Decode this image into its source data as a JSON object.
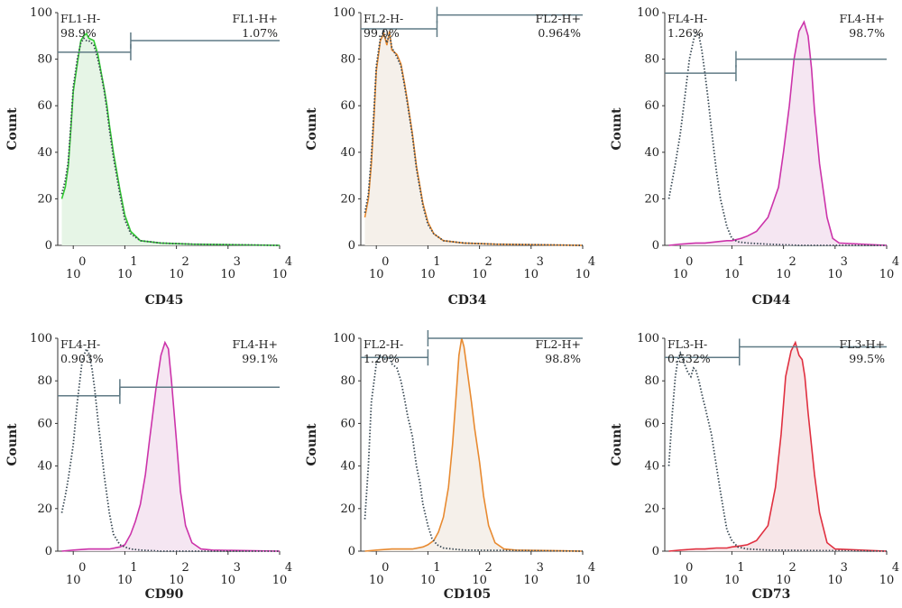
{
  "figure": {
    "y_axis_label": "Count",
    "x_tick_base": "10",
    "x_exponents": [
      "0",
      "1",
      "2",
      "3",
      "4"
    ],
    "y_ticks": [
      "0",
      "20",
      "40",
      "60",
      "80",
      "100"
    ],
    "isotype_color": "#3a4a55",
    "gate_color": "#5f7a85"
  },
  "chart_data": [
    {
      "type": "area",
      "marker": "CD45",
      "xlabel": "CD45",
      "ylabel": "Count",
      "x_scale": "log10",
      "xlim": [
        0.5,
        10000
      ],
      "ylim": [
        0,
        100
      ],
      "color": "#33cc33",
      "fill": "#e6f5e6",
      "gate_left": {
        "label": "FL1-H-",
        "percent": "98.9%",
        "x_range": [
          0.5,
          13
        ],
        "y": 83
      },
      "gate_right": {
        "label": "FL1-H+",
        "percent": "1.07%",
        "x_range": [
          13,
          10000
        ],
        "y": 88
      },
      "series": [
        {
          "name": "",
          "style": "solid",
          "x": [
            0.6,
            0.7,
            0.8,
            0.9,
            1.0,
            1.2,
            1.4,
            1.6,
            1.8,
            2.0,
            2.5,
            3.0,
            3.5,
            4.0,
            4.5,
            5.0,
            6.0,
            8.0,
            10,
            13,
            20,
            50,
            200,
            10000
          ],
          "y": [
            20,
            25,
            34,
            50,
            66,
            78,
            88,
            90,
            91,
            89,
            88,
            82,
            74,
            67,
            60,
            52,
            40,
            24,
            13,
            6,
            2,
            1,
            0.5,
            0
          ]
        },
        {
          "name": "",
          "style": "dotted",
          "x": [
            0.6,
            0.7,
            0.8,
            0.9,
            1.0,
            1.2,
            1.4,
            1.6,
            1.8,
            2.0,
            2.5,
            3.0,
            3.5,
            4.0,
            4.5,
            5.0,
            6.0,
            8.0,
            10,
            13,
            20,
            50,
            200,
            10000
          ],
          "y": [
            22,
            28,
            36,
            52,
            68,
            80,
            87,
            89,
            88,
            88,
            86,
            80,
            73,
            66,
            58,
            50,
            38,
            22,
            11,
            5,
            2,
            1,
            0.5,
            0
          ]
        }
      ]
    },
    {
      "type": "area",
      "marker": "CD34",
      "xlabel": "CD34",
      "ylabel": "Count",
      "x_scale": "log10",
      "xlim": [
        0.5,
        10000
      ],
      "ylim": [
        0,
        100
      ],
      "color": "#e88a30",
      "fill": "#f5f0ea",
      "gate_left": {
        "label": "FL2-H-",
        "percent": "99.0%",
        "x_range": [
          0.5,
          15
        ],
        "y": 93
      },
      "gate_right": {
        "label": "FL2-H+",
        "percent": "0.964%",
        "x_range": [
          15,
          10000
        ],
        "y": 99
      },
      "series": [
        {
          "name": "",
          "style": "solid",
          "x": [
            0.6,
            0.7,
            0.8,
            0.9,
            1.0,
            1.2,
            1.4,
            1.6,
            1.8,
            2.0,
            2.5,
            3.0,
            3.5,
            4.0,
            5.0,
            6.0,
            8.0,
            10,
            13,
            20,
            50,
            200,
            10000
          ],
          "y": [
            12,
            20,
            35,
            55,
            75,
            88,
            91,
            86,
            92,
            84,
            82,
            78,
            70,
            62,
            48,
            34,
            18,
            10,
            5,
            2,
            1,
            0.5,
            0
          ]
        },
        {
          "name": "",
          "style": "dotted",
          "x": [
            0.6,
            0.7,
            0.8,
            0.9,
            1.0,
            1.2,
            1.4,
            1.6,
            1.8,
            2.0,
            2.5,
            3.0,
            3.5,
            4.0,
            5.0,
            6.0,
            8.0,
            10,
            13,
            20,
            50,
            200,
            10000
          ],
          "y": [
            14,
            22,
            38,
            58,
            77,
            89,
            92,
            87,
            91,
            85,
            81,
            77,
            69,
            61,
            47,
            33,
            17,
            9,
            5,
            2,
            1,
            0.5,
            0
          ]
        }
      ]
    },
    {
      "type": "area",
      "marker": "CD44",
      "xlabel": "CD44",
      "ylabel": "Count",
      "x_scale": "log10",
      "xlim": [
        0.5,
        10000
      ],
      "ylim": [
        0,
        100
      ],
      "color": "#cc33aa",
      "fill": "#f5e6f2",
      "gate_left": {
        "label": "FL4-H-",
        "percent": "1.26%",
        "x_range": [
          0.5,
          12
        ],
        "y": 74
      },
      "gate_right": {
        "label": "FL4-H+",
        "percent": "98.7%",
        "x_range": [
          12,
          10000
        ],
        "y": 80
      },
      "series": [
        {
          "name": "",
          "style": "solid",
          "x": [
            0.6,
            1,
            2,
            3,
            5,
            8,
            10,
            15,
            20,
            30,
            50,
            80,
            100,
            130,
            160,
            200,
            250,
            300,
            350,
            400,
            500,
            700,
            900,
            1200,
            10000
          ],
          "y": [
            0,
            0.5,
            1,
            1,
            1.5,
            2,
            2,
            3,
            4,
            6,
            12,
            25,
            40,
            60,
            80,
            92,
            96,
            90,
            76,
            58,
            35,
            12,
            3,
            1,
            0
          ]
        },
        {
          "name": "",
          "style": "dotted",
          "x": [
            0.6,
            0.7,
            0.8,
            1.0,
            1.2,
            1.5,
            1.8,
            2.0,
            2.3,
            2.6,
            3.0,
            3.5,
            4.0,
            5.0,
            6.0,
            8.0,
            10,
            13,
            20,
            50,
            200,
            10000
          ],
          "y": [
            20,
            28,
            35,
            48,
            62,
            80,
            88,
            92,
            90,
            84,
            74,
            62,
            50,
            32,
            20,
            8,
            3,
            1.5,
            1,
            0.5,
            0,
            0
          ]
        }
      ]
    },
    {
      "type": "area",
      "marker": "CD90",
      "xlabel": "CD90",
      "ylabel": "Count",
      "x_scale": "log10",
      "xlim": [
        0.5,
        10000
      ],
      "ylim": [
        0,
        100
      ],
      "color": "#cc33aa",
      "fill": "#f5e6f2",
      "gate_left": {
        "label": "FL4-H-",
        "percent": "0.903%",
        "x_range": [
          0.5,
          8
        ],
        "y": 73
      },
      "gate_right": {
        "label": "FL4-H+",
        "percent": "99.1%",
        "x_range": [
          8,
          10000
        ],
        "y": 77
      },
      "series": [
        {
          "name": "",
          "style": "solid",
          "x": [
            0.6,
            1,
            2,
            3,
            5,
            8,
            10,
            13,
            16,
            20,
            25,
            30,
            40,
            50,
            60,
            70,
            80,
            100,
            120,
            150,
            200,
            300,
            500,
            10000
          ],
          "y": [
            0,
            0.5,
            1,
            1,
            1,
            2,
            3,
            8,
            14,
            22,
            36,
            52,
            76,
            92,
            98,
            95,
            80,
            52,
            28,
            12,
            4,
            1,
            0.5,
            0
          ]
        },
        {
          "name": "",
          "style": "dotted",
          "x": [
            0.6,
            0.7,
            0.8,
            1.0,
            1.2,
            1.5,
            1.8,
            2.0,
            2.3,
            2.6,
            3.0,
            3.5,
            4.0,
            5.0,
            6.0,
            8.0,
            10,
            13,
            20,
            50,
            10000
          ],
          "y": [
            18,
            26,
            34,
            50,
            70,
            90,
            95,
            93,
            86,
            76,
            62,
            48,
            35,
            18,
            8,
            3,
            2,
            1,
            0.5,
            0,
            0
          ]
        }
      ]
    },
    {
      "type": "area",
      "marker": "CD105",
      "xlabel": "CD105",
      "ylabel": "Count",
      "x_scale": "log10",
      "xlim": [
        0.5,
        10000
      ],
      "ylim": [
        0,
        100
      ],
      "color": "#e88a30",
      "fill": "#f5f0ea",
      "gate_left": {
        "label": "FL2-H-",
        "percent": "1.20%",
        "x_range": [
          0.5,
          10
        ],
        "y": 91
      },
      "gate_right": {
        "label": "FL2-H+",
        "percent": "98.8%",
        "x_range": [
          10,
          10000
        ],
        "y": 100
      },
      "series": [
        {
          "name": "",
          "style": "solid",
          "x": [
            0.6,
            1,
            2,
            3,
            5,
            8,
            10,
            13,
            16,
            20,
            25,
            30,
            35,
            40,
            45,
            50,
            60,
            70,
            80,
            100,
            120,
            150,
            200,
            300,
            500,
            10000
          ],
          "y": [
            0,
            0.5,
            1,
            1,
            1,
            2,
            3,
            5,
            9,
            16,
            30,
            50,
            72,
            92,
            100,
            96,
            82,
            70,
            58,
            42,
            26,
            12,
            4,
            1,
            0.5,
            0
          ]
        },
        {
          "name": "",
          "style": "dotted",
          "x": [
            0.6,
            0.7,
            0.8,
            1.0,
            1.2,
            1.5,
            1.8,
            2.0,
            2.5,
            3.0,
            3.5,
            4.0,
            5.0,
            6.0,
            7.0,
            8.0,
            10,
            12,
            15,
            20,
            30,
            50,
            10000
          ],
          "y": [
            15,
            40,
            70,
            88,
            92,
            90,
            91,
            88,
            86,
            80,
            72,
            64,
            54,
            40,
            32,
            22,
            12,
            6,
            3,
            1.5,
            1,
            0.5,
            0
          ]
        }
      ]
    },
    {
      "type": "area",
      "marker": "CD73",
      "xlabel": "CD73",
      "ylabel": "Count",
      "x_scale": "log10",
      "xlim": [
        0.5,
        10000
      ],
      "ylim": [
        0,
        100
      ],
      "color": "#e03040",
      "fill": "#f7e6e8",
      "gate_left": {
        "label": "FL3-H-",
        "percent": "0.532%",
        "x_range": [
          0.5,
          14
        ],
        "y": 91
      },
      "gate_right": {
        "label": "FL3-H+",
        "percent": "99.5%",
        "x_range": [
          14,
          10000
        ],
        "y": 96
      },
      "series": [
        {
          "name": "",
          "style": "solid",
          "x": [
            0.6,
            1,
            2,
            3,
            5,
            8,
            10,
            15,
            20,
            30,
            50,
            70,
            90,
            110,
            140,
            170,
            200,
            230,
            260,
            300,
            400,
            500,
            700,
            1000,
            10000
          ],
          "y": [
            0,
            0.5,
            1,
            1,
            1.5,
            1.5,
            2,
            2.5,
            3,
            5,
            12,
            30,
            55,
            82,
            94,
            98,
            92,
            90,
            82,
            65,
            36,
            18,
            4,
            1,
            0
          ]
        },
        {
          "name": "",
          "style": "dotted",
          "x": [
            0.6,
            0.7,
            0.8,
            0.9,
            1.0,
            1.2,
            1.4,
            1.6,
            1.8,
            2.0,
            2.3,
            2.6,
            3.0,
            4.0,
            5.0,
            6.0,
            7.0,
            8.0,
            10,
            13,
            20,
            50,
            10000
          ],
          "y": [
            40,
            65,
            82,
            90,
            93,
            88,
            84,
            82,
            86,
            85,
            80,
            74,
            68,
            55,
            40,
            28,
            18,
            10,
            5,
            2,
            1,
            0.5,
            0
          ]
        }
      ]
    }
  ]
}
